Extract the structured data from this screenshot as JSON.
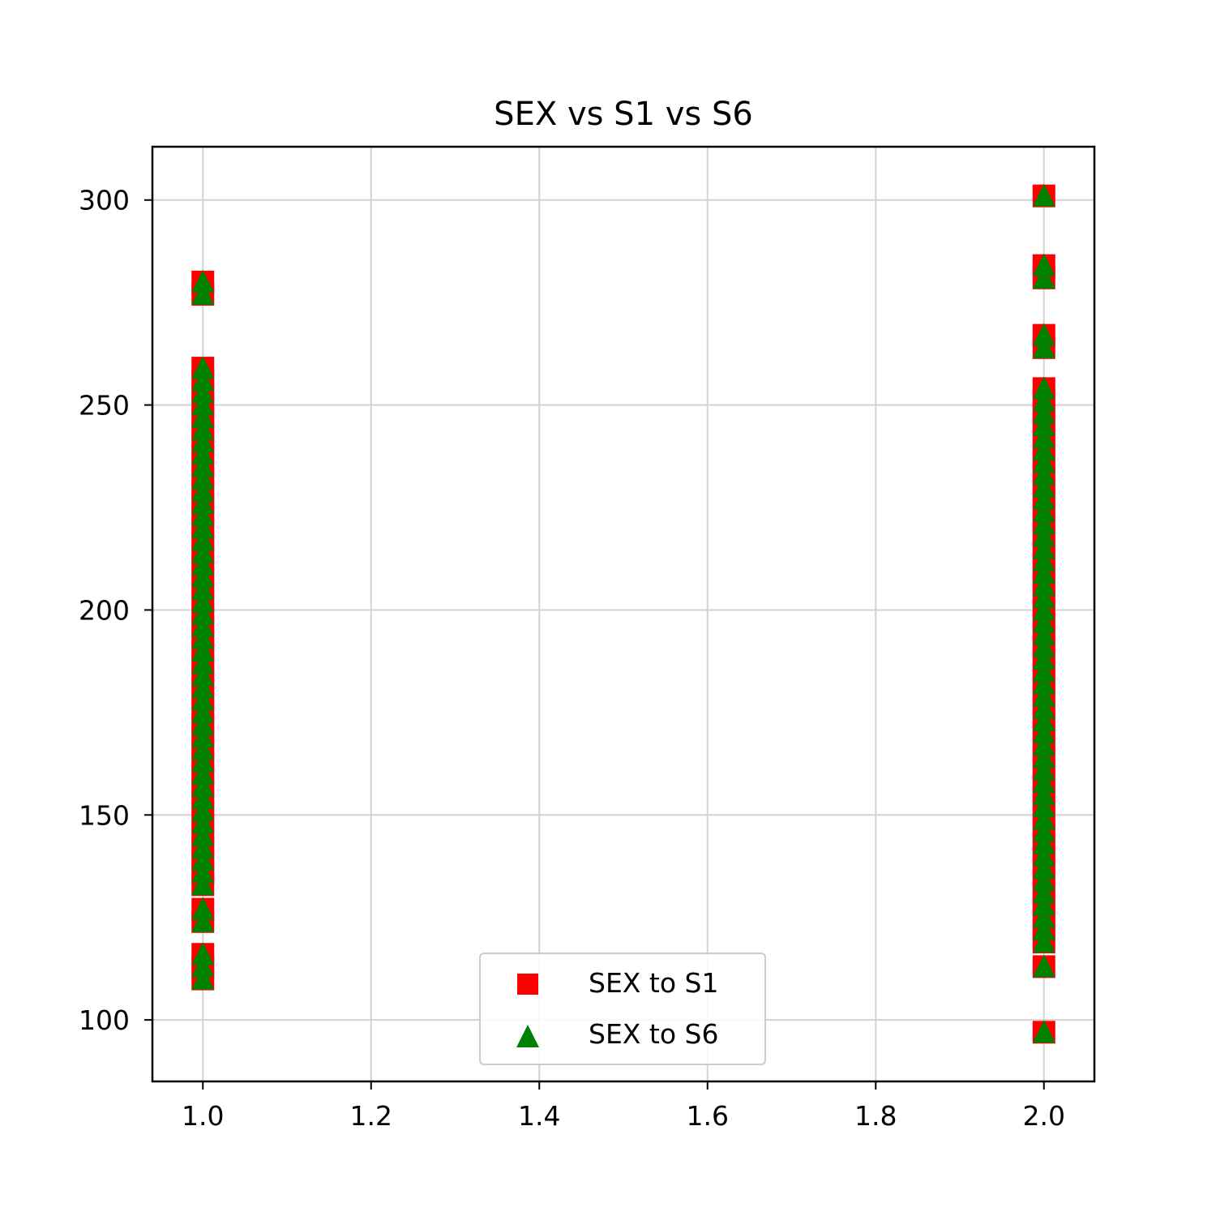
{
  "chart_data": {
    "type": "scatter",
    "title": "SEX vs S1 vs S6",
    "xlabel": "",
    "ylabel": "",
    "xlim": [
      0.94,
      2.06
    ],
    "ylim": [
      85,
      313
    ],
    "x_ticks": [
      1.0,
      1.2,
      1.4,
      1.6,
      1.8,
      2.0
    ],
    "x_tick_labels": [
      "1.0",
      "1.2",
      "1.4",
      "1.6",
      "1.8",
      "2.0"
    ],
    "y_ticks": [
      100,
      150,
      200,
      250,
      300
    ],
    "y_tick_labels": [
      "100",
      "150",
      "200",
      "250",
      "300"
    ],
    "grid": true,
    "legend_position": "bottom-center",
    "series": [
      {
        "name": "SEX to S1",
        "marker": "square",
        "color": "#ff0000",
        "points": [
          [
            1,
            110
          ],
          [
            1,
            113
          ],
          [
            1,
            116
          ],
          [
            1,
            124
          ],
          [
            1,
            127
          ],
          [
            1,
            133
          ],
          [
            1,
            136
          ],
          [
            1,
            139
          ],
          [
            1,
            142
          ],
          [
            1,
            145
          ],
          [
            1,
            148
          ],
          [
            1,
            151
          ],
          [
            1,
            154
          ],
          [
            1,
            157
          ],
          [
            1,
            160
          ],
          [
            1,
            163
          ],
          [
            1,
            166
          ],
          [
            1,
            169
          ],
          [
            1,
            172
          ],
          [
            1,
            175
          ],
          [
            1,
            178
          ],
          [
            1,
            181
          ],
          [
            1,
            184
          ],
          [
            1,
            187
          ],
          [
            1,
            190
          ],
          [
            1,
            193
          ],
          [
            1,
            196
          ],
          [
            1,
            199
          ],
          [
            1,
            202
          ],
          [
            1,
            205
          ],
          [
            1,
            208
          ],
          [
            1,
            211
          ],
          [
            1,
            214
          ],
          [
            1,
            217
          ],
          [
            1,
            220
          ],
          [
            1,
            223
          ],
          [
            1,
            226
          ],
          [
            1,
            229
          ],
          [
            1,
            232
          ],
          [
            1,
            235
          ],
          [
            1,
            238
          ],
          [
            1,
            241
          ],
          [
            1,
            244
          ],
          [
            1,
            247
          ],
          [
            1,
            250
          ],
          [
            1,
            253
          ],
          [
            1,
            256
          ],
          [
            1,
            259
          ],
          [
            1,
            277
          ],
          [
            1,
            280
          ],
          [
            2,
            97
          ],
          [
            2,
            113
          ],
          [
            2,
            119
          ],
          [
            2,
            122
          ],
          [
            2,
            125
          ],
          [
            2,
            128
          ],
          [
            2,
            131
          ],
          [
            2,
            134
          ],
          [
            2,
            137
          ],
          [
            2,
            140
          ],
          [
            2,
            143
          ],
          [
            2,
            146
          ],
          [
            2,
            149
          ],
          [
            2,
            152
          ],
          [
            2,
            155
          ],
          [
            2,
            158
          ],
          [
            2,
            161
          ],
          [
            2,
            164
          ],
          [
            2,
            167
          ],
          [
            2,
            170
          ],
          [
            2,
            173
          ],
          [
            2,
            176
          ],
          [
            2,
            179
          ],
          [
            2,
            182
          ],
          [
            2,
            185
          ],
          [
            2,
            188
          ],
          [
            2,
            191
          ],
          [
            2,
            194
          ],
          [
            2,
            197
          ],
          [
            2,
            200
          ],
          [
            2,
            203
          ],
          [
            2,
            206
          ],
          [
            2,
            209
          ],
          [
            2,
            212
          ],
          [
            2,
            215
          ],
          [
            2,
            218
          ],
          [
            2,
            221
          ],
          [
            2,
            224
          ],
          [
            2,
            227
          ],
          [
            2,
            230
          ],
          [
            2,
            233
          ],
          [
            2,
            236
          ],
          [
            2,
            239
          ],
          [
            2,
            242
          ],
          [
            2,
            245
          ],
          [
            2,
            248
          ],
          [
            2,
            251
          ],
          [
            2,
            254
          ],
          [
            2,
            264
          ],
          [
            2,
            267
          ],
          [
            2,
            281
          ],
          [
            2,
            284
          ],
          [
            2,
            301
          ]
        ]
      },
      {
        "name": "SEX to S6",
        "marker": "triangle",
        "color": "#008000",
        "points": [
          [
            1,
            110
          ],
          [
            1,
            113
          ],
          [
            1,
            116
          ],
          [
            1,
            124
          ],
          [
            1,
            127
          ],
          [
            1,
            133
          ],
          [
            1,
            136
          ],
          [
            1,
            139
          ],
          [
            1,
            142
          ],
          [
            1,
            145
          ],
          [
            1,
            148
          ],
          [
            1,
            151
          ],
          [
            1,
            154
          ],
          [
            1,
            157
          ],
          [
            1,
            160
          ],
          [
            1,
            163
          ],
          [
            1,
            166
          ],
          [
            1,
            169
          ],
          [
            1,
            172
          ],
          [
            1,
            175
          ],
          [
            1,
            178
          ],
          [
            1,
            181
          ],
          [
            1,
            184
          ],
          [
            1,
            187
          ],
          [
            1,
            190
          ],
          [
            1,
            193
          ],
          [
            1,
            196
          ],
          [
            1,
            199
          ],
          [
            1,
            202
          ],
          [
            1,
            205
          ],
          [
            1,
            208
          ],
          [
            1,
            211
          ],
          [
            1,
            214
          ],
          [
            1,
            217
          ],
          [
            1,
            220
          ],
          [
            1,
            223
          ],
          [
            1,
            226
          ],
          [
            1,
            229
          ],
          [
            1,
            232
          ],
          [
            1,
            235
          ],
          [
            1,
            238
          ],
          [
            1,
            241
          ],
          [
            1,
            244
          ],
          [
            1,
            247
          ],
          [
            1,
            250
          ],
          [
            1,
            253
          ],
          [
            1,
            256
          ],
          [
            1,
            259
          ],
          [
            1,
            277
          ],
          [
            1,
            280
          ],
          [
            2,
            97
          ],
          [
            2,
            113
          ],
          [
            2,
            119
          ],
          [
            2,
            122
          ],
          [
            2,
            125
          ],
          [
            2,
            128
          ],
          [
            2,
            131
          ],
          [
            2,
            134
          ],
          [
            2,
            137
          ],
          [
            2,
            140
          ],
          [
            2,
            143
          ],
          [
            2,
            146
          ],
          [
            2,
            149
          ],
          [
            2,
            152
          ],
          [
            2,
            155
          ],
          [
            2,
            158
          ],
          [
            2,
            161
          ],
          [
            2,
            164
          ],
          [
            2,
            167
          ],
          [
            2,
            170
          ],
          [
            2,
            173
          ],
          [
            2,
            176
          ],
          [
            2,
            179
          ],
          [
            2,
            182
          ],
          [
            2,
            185
          ],
          [
            2,
            188
          ],
          [
            2,
            191
          ],
          [
            2,
            194
          ],
          [
            2,
            197
          ],
          [
            2,
            200
          ],
          [
            2,
            203
          ],
          [
            2,
            206
          ],
          [
            2,
            209
          ],
          [
            2,
            212
          ],
          [
            2,
            215
          ],
          [
            2,
            218
          ],
          [
            2,
            221
          ],
          [
            2,
            224
          ],
          [
            2,
            227
          ],
          [
            2,
            230
          ],
          [
            2,
            233
          ],
          [
            2,
            236
          ],
          [
            2,
            239
          ],
          [
            2,
            242
          ],
          [
            2,
            245
          ],
          [
            2,
            248
          ],
          [
            2,
            251
          ],
          [
            2,
            254
          ],
          [
            2,
            264
          ],
          [
            2,
            267
          ],
          [
            2,
            281
          ],
          [
            2,
            284
          ],
          [
            2,
            301
          ]
        ]
      }
    ]
  }
}
